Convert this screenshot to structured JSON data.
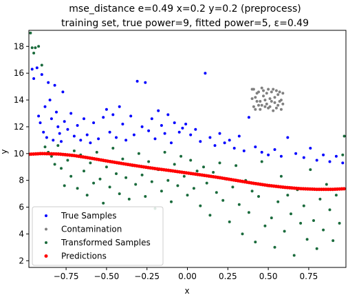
{
  "chart_data": {
    "type": "scatter",
    "title": "mse_distance e=0.49 x=0.2 y=0.2 (preprocess)",
    "subtitle": "training set, true power=9, fitted power=5, ε=0.49",
    "xlabel": "x",
    "ylabel": "y",
    "xlim": [
      -0.98,
      0.98
    ],
    "ylim": [
      1.5,
      19.2
    ],
    "xticks": [
      -0.75,
      -0.5,
      -0.25,
      0.0,
      0.25,
      0.5,
      0.75
    ],
    "xtick_labels": [
      "−0.75",
      "−0.50",
      "−0.25",
      "0.00",
      "0.25",
      "0.50",
      "0.75"
    ],
    "yticks": [
      2,
      4,
      6,
      8,
      10,
      12,
      14,
      16,
      18
    ],
    "ytick_labels": [
      "2",
      "4",
      "6",
      "8",
      "10",
      "12",
      "14",
      "16",
      "18"
    ],
    "grid": false,
    "legend_position": "lower-left",
    "series": [
      {
        "name": "True Samples",
        "color": "#0000ff",
        "points": [
          [
            -0.96,
            16.3
          ],
          [
            -0.95,
            15.6
          ],
          [
            -0.93,
            16.4
          ],
          [
            -0.92,
            12.8
          ],
          [
            -0.91,
            12.3
          ],
          [
            -0.9,
            15.9
          ],
          [
            -0.89,
            11.6
          ],
          [
            -0.88,
            13.5
          ],
          [
            -0.87,
            11.2
          ],
          [
            -0.86,
            15.3
          ],
          [
            -0.85,
            14.0
          ],
          [
            -0.84,
            12.6
          ],
          [
            -0.83,
            11.0
          ],
          [
            -0.82,
            15.1
          ],
          [
            -0.81,
            13.1
          ],
          [
            -0.8,
            12.0
          ],
          [
            -0.79,
            11.5
          ],
          [
            -0.78,
            10.9
          ],
          [
            -0.77,
            14.6
          ],
          [
            -0.76,
            12.4
          ],
          [
            -0.74,
            11.8
          ],
          [
            -0.72,
            13.0
          ],
          [
            -0.7,
            11.3
          ],
          [
            -0.68,
            12.1
          ],
          [
            -0.66,
            11.0
          ],
          [
            -0.64,
            12.6
          ],
          [
            -0.62,
            11.4
          ],
          [
            -0.6,
            10.8
          ],
          [
            -0.58,
            12.3
          ],
          [
            -0.55,
            11.1
          ],
          [
            -0.52,
            12.7
          ],
          [
            -0.5,
            13.3
          ],
          [
            -0.48,
            11.6
          ],
          [
            -0.46,
            12.9
          ],
          [
            -0.44,
            11.2
          ],
          [
            -0.42,
            13.5
          ],
          [
            -0.4,
            12.2
          ],
          [
            -0.38,
            11.0
          ],
          [
            -0.35,
            12.8
          ],
          [
            -0.33,
            11.4
          ],
          [
            -0.31,
            15.4
          ],
          [
            -0.28,
            12.0
          ],
          [
            -0.26,
            15.3
          ],
          [
            -0.24,
            11.7
          ],
          [
            -0.22,
            12.6
          ],
          [
            -0.2,
            11.1
          ],
          [
            -0.18,
            13.2
          ],
          [
            -0.16,
            12.1
          ],
          [
            -0.14,
            11.5
          ],
          [
            -0.12,
            12.9
          ],
          [
            -0.1,
            10.8
          ],
          [
            -0.08,
            12.3
          ],
          [
            -0.05,
            11.6
          ],
          [
            -0.03,
            11.9
          ],
          [
            -0.01,
            12.2
          ],
          [
            0.02,
            11.4
          ],
          [
            0.05,
            11.8
          ],
          [
            0.08,
            10.9
          ],
          [
            0.11,
            16.0
          ],
          [
            0.14,
            11.2
          ],
          [
            0.17,
            10.6
          ],
          [
            0.2,
            11.5
          ],
          [
            0.23,
            10.8
          ],
          [
            0.26,
            11.0
          ],
          [
            0.29,
            10.4
          ],
          [
            0.32,
            11.3
          ],
          [
            0.35,
            10.2
          ],
          [
            0.38,
            12.7
          ],
          [
            0.42,
            10.5
          ],
          [
            0.46,
            10.1
          ],
          [
            0.5,
            9.9
          ],
          [
            0.54,
            10.3
          ],
          [
            0.58,
            9.8
          ],
          [
            0.62,
            11.2
          ],
          [
            0.67,
            10.0
          ],
          [
            0.72,
            9.7
          ],
          [
            0.76,
            10.4
          ],
          [
            0.8,
            9.5
          ],
          [
            0.84,
            9.9
          ],
          [
            0.88,
            9.4
          ],
          [
            0.92,
            9.8
          ],
          [
            0.96,
            9.3
          ]
        ]
      },
      {
        "name": "Contamination",
        "color": "#808080",
        "points": [
          [
            0.4,
            14.8
          ],
          [
            0.42,
            14.2
          ],
          [
            0.44,
            13.6
          ],
          [
            0.46,
            14.9
          ],
          [
            0.48,
            14.0
          ],
          [
            0.5,
            13.4
          ],
          [
            0.52,
            14.6
          ],
          [
            0.54,
            13.8
          ],
          [
            0.56,
            14.4
          ],
          [
            0.58,
            13.3
          ],
          [
            0.41,
            13.5
          ],
          [
            0.43,
            14.5
          ],
          [
            0.45,
            13.9
          ],
          [
            0.47,
            14.3
          ],
          [
            0.49,
            13.7
          ],
          [
            0.51,
            14.1
          ],
          [
            0.53,
            13.2
          ],
          [
            0.55,
            14.7
          ],
          [
            0.57,
            13.9
          ],
          [
            0.59,
            14.5
          ],
          [
            0.4,
            14.1
          ],
          [
            0.44,
            14.6
          ],
          [
            0.48,
            13.5
          ],
          [
            0.52,
            13.9
          ],
          [
            0.56,
            13.6
          ],
          [
            0.42,
            13.3
          ],
          [
            0.46,
            13.6
          ],
          [
            0.5,
            14.8
          ],
          [
            0.54,
            14.2
          ],
          [
            0.58,
            14.0
          ],
          [
            0.41,
            14.8
          ],
          [
            0.45,
            13.3
          ],
          [
            0.49,
            14.5
          ],
          [
            0.53,
            14.8
          ],
          [
            0.57,
            14.6
          ],
          [
            0.43,
            13.9
          ],
          [
            0.47,
            14.7
          ],
          [
            0.51,
            13.5
          ],
          [
            0.55,
            13.4
          ],
          [
            0.59,
            13.7
          ]
        ]
      },
      {
        "name": "Transformed Samples",
        "color": "#1a6b3c",
        "points": [
          [
            -0.97,
            19.0
          ],
          [
            -0.96,
            17.9
          ],
          [
            -0.95,
            17.5
          ],
          [
            -0.94,
            17.9
          ],
          [
            -0.92,
            18.0
          ],
          [
            -0.9,
            16.6
          ],
          [
            -0.88,
            10.5
          ],
          [
            -0.86,
            10.1
          ],
          [
            -0.84,
            9.8
          ],
          [
            -0.82,
            9.2
          ],
          [
            -0.8,
            10.6
          ],
          [
            -0.78,
            8.9
          ],
          [
            -0.76,
            7.6
          ],
          [
            -0.74,
            9.5
          ],
          [
            -0.72,
            8.3
          ],
          [
            -0.7,
            10.2
          ],
          [
            -0.68,
            7.4
          ],
          [
            -0.66,
            9.9
          ],
          [
            -0.64,
            8.7
          ],
          [
            -0.62,
            6.9
          ],
          [
            -0.6,
            9.3
          ],
          [
            -0.58,
            7.8
          ],
          [
            -0.56,
            10.1
          ],
          [
            -0.54,
            8.1
          ],
          [
            -0.52,
            6.3
          ],
          [
            -0.5,
            9.0
          ],
          [
            -0.48,
            7.5
          ],
          [
            -0.46,
            10.4
          ],
          [
            -0.44,
            8.5
          ],
          [
            -0.42,
            7.0
          ],
          [
            -0.4,
            9.6
          ],
          [
            -0.38,
            8.2
          ],
          [
            -0.36,
            6.6
          ],
          [
            -0.34,
            9.1
          ],
          [
            -0.32,
            7.7
          ],
          [
            -0.3,
            10.0
          ],
          [
            -0.28,
            8.4
          ],
          [
            -0.26,
            6.8
          ],
          [
            -0.24,
            9.4
          ],
          [
            -0.22,
            7.9
          ],
          [
            -0.2,
            5.9
          ],
          [
            -0.18,
            8.8
          ],
          [
            -0.16,
            7.2
          ],
          [
            -0.14,
            10.1
          ],
          [
            -0.12,
            8.0
          ],
          [
            -0.1,
            6.4
          ],
          [
            -0.08,
            9.2
          ],
          [
            -0.06,
            7.6
          ],
          [
            -0.04,
            9.8
          ],
          [
            -0.02,
            8.3
          ],
          [
            0.0,
            6.9
          ],
          [
            0.02,
            9.5
          ],
          [
            0.04,
            7.4
          ],
          [
            0.06,
            8.7
          ],
          [
            0.08,
            6.1
          ],
          [
            0.1,
            9.0
          ],
          [
            0.12,
            7.8
          ],
          [
            0.14,
            5.4
          ],
          [
            0.16,
            8.6
          ],
          [
            0.18,
            7.1
          ],
          [
            0.2,
            9.3
          ],
          [
            0.22,
            6.5
          ],
          [
            0.24,
            8.1
          ],
          [
            0.26,
            4.9
          ],
          [
            0.28,
            7.5
          ],
          [
            0.3,
            9.1
          ],
          [
            0.32,
            6.2
          ],
          [
            0.34,
            4.0
          ],
          [
            0.36,
            8.0
          ],
          [
            0.38,
            5.6
          ],
          [
            0.4,
            7.2
          ],
          [
            0.42,
            3.4
          ],
          [
            0.44,
            6.8
          ],
          [
            0.46,
            9.4
          ],
          [
            0.48,
            4.6
          ],
          [
            0.5,
            7.6
          ],
          [
            0.52,
            5.2
          ],
          [
            0.54,
            3.0
          ],
          [
            0.56,
            6.4
          ],
          [
            0.58,
            8.3
          ],
          [
            0.6,
            4.2
          ],
          [
            0.62,
            6.9
          ],
          [
            0.64,
            5.5
          ],
          [
            0.66,
            2.4
          ],
          [
            0.68,
            7.3
          ],
          [
            0.7,
            4.8
          ],
          [
            0.72,
            6.1
          ],
          [
            0.74,
            3.6
          ],
          [
            0.76,
            8.8
          ],
          [
            0.78,
            5.0
          ],
          [
            0.8,
            2.9
          ],
          [
            0.82,
            6.6
          ],
          [
            0.84,
            4.3
          ],
          [
            0.86,
            7.7
          ],
          [
            0.88,
            5.8
          ],
          [
            0.9,
            3.5
          ],
          [
            0.92,
            6.9
          ],
          [
            0.94,
            4.8
          ],
          [
            0.96,
            9.9
          ],
          [
            0.97,
            11.3
          ]
        ]
      },
      {
        "name": "Predictions",
        "color": "#ff0000",
        "curve": [
          [
            -0.98,
            9.95
          ],
          [
            -0.9,
            10.0
          ],
          [
            -0.8,
            9.97
          ],
          [
            -0.7,
            9.85
          ],
          [
            -0.6,
            9.66
          ],
          [
            -0.5,
            9.45
          ],
          [
            -0.4,
            9.25
          ],
          [
            -0.3,
            9.06
          ],
          [
            -0.2,
            8.88
          ],
          [
            -0.1,
            8.72
          ],
          [
            0.0,
            8.55
          ],
          [
            0.1,
            8.38
          ],
          [
            0.2,
            8.2
          ],
          [
            0.3,
            8.0
          ],
          [
            0.4,
            7.8
          ],
          [
            0.5,
            7.62
          ],
          [
            0.6,
            7.48
          ],
          [
            0.7,
            7.38
          ],
          [
            0.8,
            7.33
          ],
          [
            0.9,
            7.33
          ],
          [
            0.98,
            7.38
          ]
        ]
      }
    ]
  }
}
